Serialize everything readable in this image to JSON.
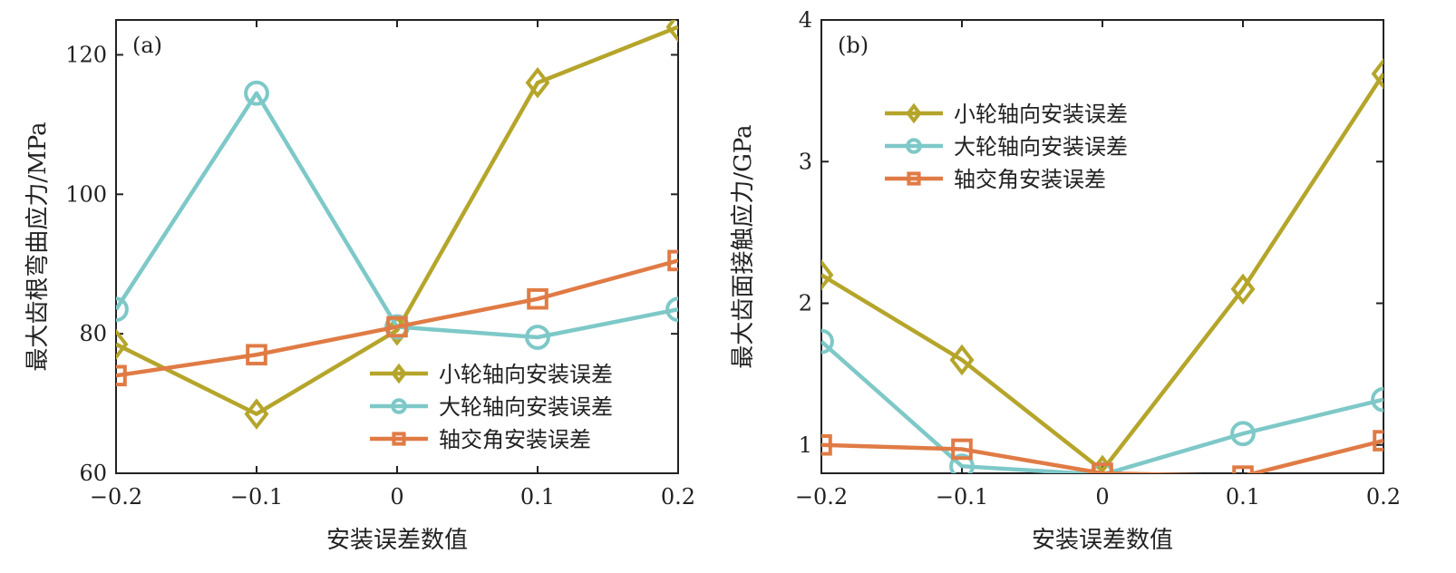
{
  "chart_data": [
    {
      "type": "line",
      "panel_label": "(a)",
      "xlabel": "安装误差数值",
      "ylabel": "最大齿根弯曲应力/MPa",
      "xlim": [
        -0.2,
        0.2
      ],
      "ylim": [
        60,
        125
      ],
      "x": [
        -0.2,
        -0.1,
        0,
        0.1,
        0.2
      ],
      "xticks": [
        -0.2,
        -0.1,
        0,
        0.1,
        0.2
      ],
      "xtick_labels": [
        "−0.2",
        "−0.1",
        "0",
        "0.1",
        "0.2"
      ],
      "yticks": [
        60,
        80,
        100,
        120
      ],
      "ytick_labels": [
        "60",
        "80",
        "100",
        "120"
      ],
      "legend_position": "bottom-right",
      "series": [
        {
          "name": "小轮轴向安装误差",
          "values": [
            78.5,
            68.5,
            80.5,
            116,
            124
          ],
          "color": "#b5a52a",
          "marker": "diamond"
        },
        {
          "name": "大轮轴向安装误差",
          "values": [
            83.5,
            114.5,
            81,
            79.5,
            83.5
          ],
          "color": "#7ec8c8",
          "marker": "circle"
        },
        {
          "name": "轴交角安装误差",
          "values": [
            74,
            77,
            81,
            85,
            90.5
          ],
          "color": "#e07b45",
          "marker": "square"
        }
      ]
    },
    {
      "type": "line",
      "panel_label": "(b)",
      "xlabel": "安装误差数值",
      "ylabel": "最大齿面接触应力/GPa",
      "xlim": [
        -0.2,
        0.2
      ],
      "ylim": [
        0.8,
        4
      ],
      "x": [
        -0.2,
        -0.1,
        0,
        0.1,
        0.2
      ],
      "xticks": [
        -0.2,
        -0.1,
        0,
        0.1,
        0.2
      ],
      "xtick_labels": [
        "−0.2",
        "−0.1",
        "0",
        "0.1",
        "0.2"
      ],
      "yticks": [
        1,
        2,
        3,
        4
      ],
      "ytick_labels": [
        "1",
        "2",
        "3",
        "4"
      ],
      "legend_position": "top-left",
      "series": [
        {
          "name": "小轮轴向安装误差",
          "values": [
            2.2,
            1.6,
            0.82,
            2.1,
            3.62
          ],
          "color": "#b5a52a",
          "marker": "diamond"
        },
        {
          "name": "大轮轴向安装误差",
          "values": [
            1.73,
            0.85,
            0.79,
            1.08,
            1.32
          ],
          "color": "#7ec8c8",
          "marker": "circle"
        },
        {
          "name": "轴交角安装误差",
          "values": [
            1.0,
            0.97,
            0.8,
            0.78,
            1.03
          ],
          "color": "#e07b45",
          "marker": "square"
        }
      ]
    }
  ]
}
